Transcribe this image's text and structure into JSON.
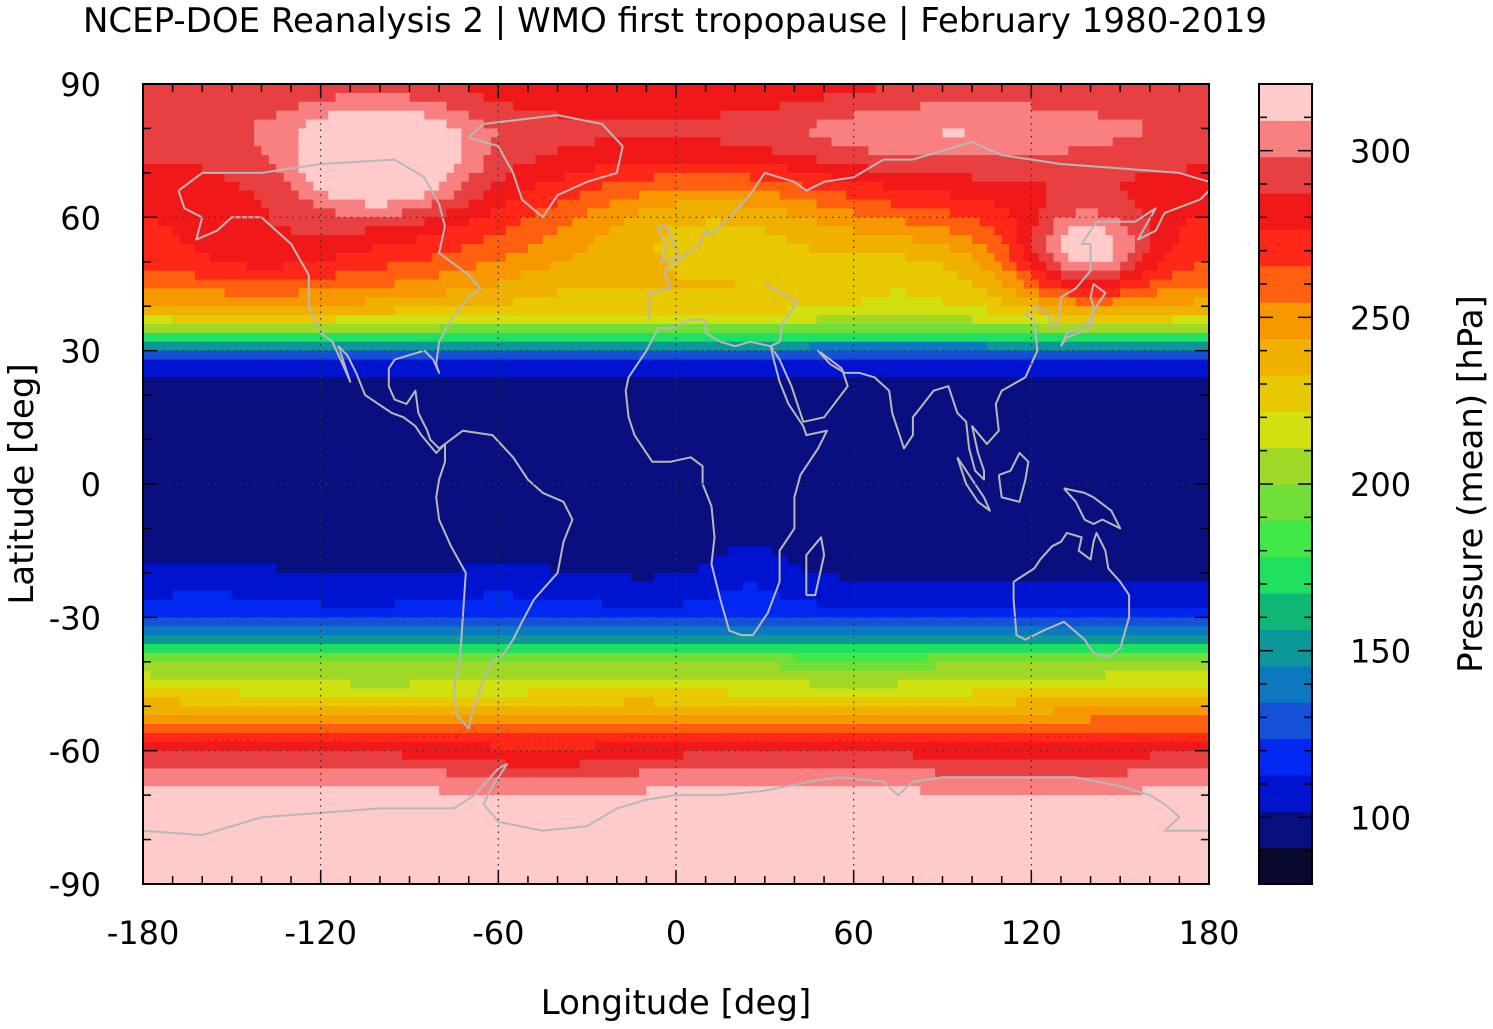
{
  "chart_data": {
    "type": "heatmap",
    "title": "NCEP-DOE Reanalysis 2 | WMO first tropopause | February 1980-2019",
    "xlabel": "Longitude [deg]",
    "ylabel": "Latitude [deg]",
    "colorbar_label": "Pressure (mean) [hPa]",
    "xlim": [
      -180,
      180
    ],
    "ylim": [
      -90,
      90
    ],
    "xticks": [
      -180,
      -120,
      -60,
      0,
      60,
      120,
      180
    ],
    "yticks": [
      90,
      60,
      30,
      0,
      -30,
      -60,
      -90
    ],
    "xtick_labels": [
      "-180",
      "-120",
      "-60",
      "0",
      "60",
      "120",
      "180"
    ],
    "ytick_labels": [
      "90",
      "60",
      "30",
      "0",
      "-30",
      "-60",
      "-90"
    ],
    "colorbar_range": [
      80,
      320
    ],
    "colorbar_ticks": [
      100,
      150,
      200,
      250,
      300
    ],
    "colorbar_tick_labels": [
      "100",
      "150",
      "200",
      "250",
      "300"
    ],
    "grid": true,
    "coastlines_color": "#b8b8b8",
    "colorbar_colors": [
      "#0a0a2e",
      "#0a0f80",
      "#0014d0",
      "#0028f0",
      "#1550d8",
      "#0c78c0",
      "#0c9898",
      "#10b878",
      "#20e060",
      "#40e848",
      "#70e038",
      "#a0d828",
      "#d0e010",
      "#e8c800",
      "#f0b000",
      "#f89800",
      "#ff6010",
      "#ff2818",
      "#f01818",
      "#e84040",
      "#f88080",
      "#ffcaca"
    ],
    "zonal_mean_profile": {
      "lat": [
        90,
        80,
        70,
        60,
        50,
        45,
        40,
        36,
        33,
        30,
        27,
        24,
        20,
        10,
        0,
        -10,
        -20,
        -25,
        -30,
        -33,
        -36,
        -40,
        -45,
        -50,
        -55,
        -60,
        -65,
        -70,
        -80,
        -90
      ],
      "pressure": [
        290,
        295,
        285,
        275,
        265,
        255,
        240,
        215,
        175,
        135,
        112,
        102,
        94,
        92,
        92,
        92,
        100,
        108,
        118,
        135,
        165,
        200,
        220,
        240,
        265,
        285,
        300,
        312,
        318,
        320
      ]
    },
    "features": [
      {
        "lon": -100,
        "lat": 72,
        "pressure": 318
      },
      {
        "lon": 138,
        "lat": 52,
        "pressure": 318
      },
      {
        "lon": -40,
        "lat": 5,
        "pressure": 101
      },
      {
        "lon": 25,
        "lat": -20,
        "pressure": 101
      },
      {
        "lon": 120,
        "lat": 5,
        "pressure": 101
      }
    ]
  }
}
